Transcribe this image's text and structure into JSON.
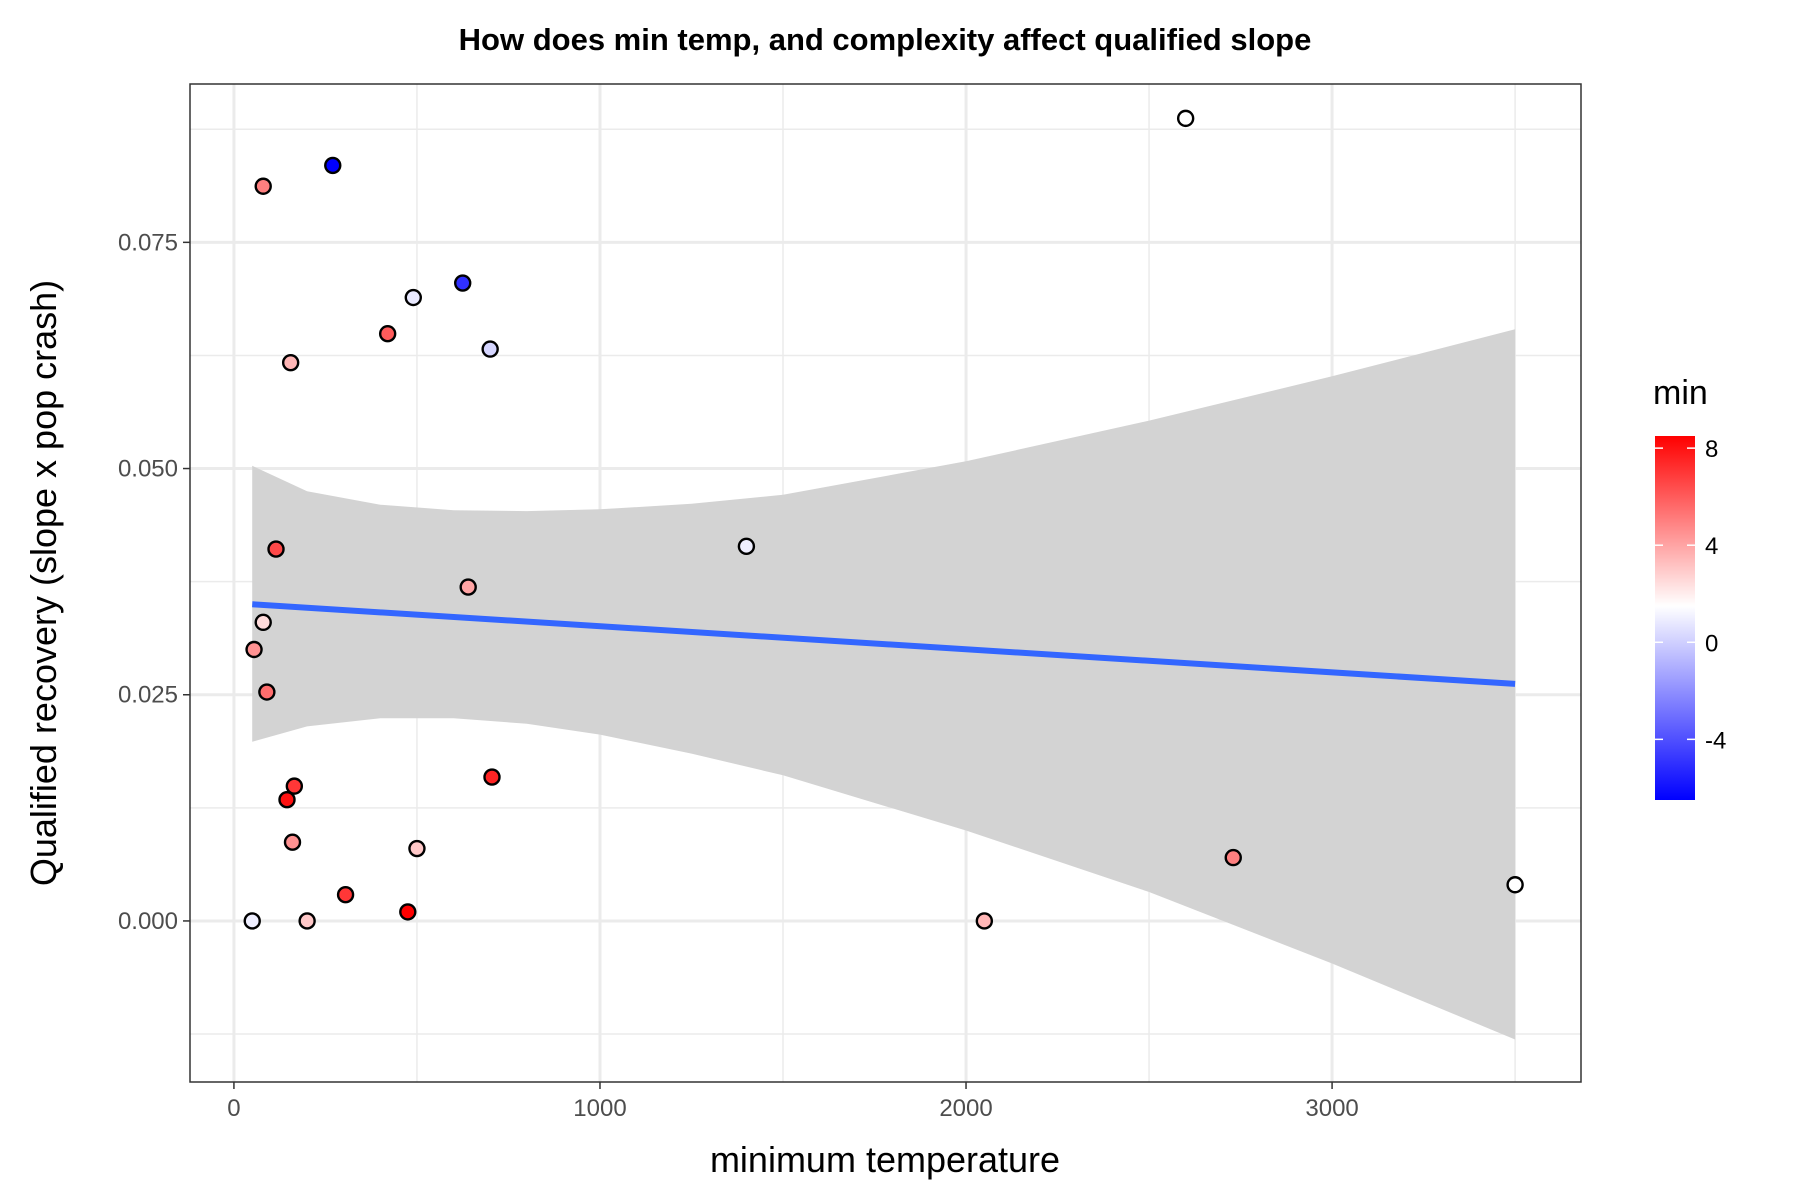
{
  "chart_data": {
    "type": "scatter",
    "title": "How does min temp, and complexity affect qualified slope",
    "xlabel": "minimum temperature",
    "ylabel": "Qualified recovery (slope x pop crash)",
    "xlim": [
      -120,
      3680
    ],
    "ylim": [
      -0.0178,
      0.0925
    ],
    "x_ticks": [
      0,
      1000,
      2000,
      3000
    ],
    "x_tick_labels": [
      "0",
      "1000",
      "2000",
      "3000"
    ],
    "x_minor_ticks": [
      500,
      1500,
      2500,
      3500
    ],
    "y_ticks": [
      0.0,
      0.025,
      0.05,
      0.075
    ],
    "y_tick_labels": [
      "0.000",
      "0.025",
      "0.050",
      "0.075"
    ],
    "y_minor_ticks": [
      -0.0125,
      0.0125,
      0.0375,
      0.0625,
      0.0875
    ],
    "grid": true,
    "color_scale": {
      "title": "min",
      "low": -6.5,
      "mid": 1.5,
      "high": 8.5,
      "low_color": "#0000ff",
      "mid_color": "#ffffff",
      "high_color": "#ff0000",
      "ticks": [
        8,
        4,
        0,
        -4
      ],
      "tick_labels": [
        "8",
        "4",
        "0",
        "-4"
      ]
    },
    "points": [
      {
        "x": 270,
        "y": 0.0835,
        "color": -6.5
      },
      {
        "x": 80,
        "y": 0.0812,
        "color": 5.0
      },
      {
        "x": 2600,
        "y": 0.0887,
        "color": 1.5
      },
      {
        "x": 625,
        "y": 0.0705,
        "color": -5.0
      },
      {
        "x": 490,
        "y": 0.0689,
        "color": 0.8
      },
      {
        "x": 420,
        "y": 0.0649,
        "color": 6.0
      },
      {
        "x": 700,
        "y": 0.0632,
        "color": 0.2
      },
      {
        "x": 155,
        "y": 0.0617,
        "color": 3.5
      },
      {
        "x": 115,
        "y": 0.0411,
        "color": 6.5
      },
      {
        "x": 1400,
        "y": 0.0414,
        "color": 1.0
      },
      {
        "x": 640,
        "y": 0.0369,
        "color": 4.0
      },
      {
        "x": 80,
        "y": 0.033,
        "color": 2.5
      },
      {
        "x": 55,
        "y": 0.03,
        "color": 4.5
      },
      {
        "x": 90,
        "y": 0.0253,
        "color": 5.5
      },
      {
        "x": 165,
        "y": 0.0149,
        "color": 7.0
      },
      {
        "x": 145,
        "y": 0.0134,
        "color": 8.0
      },
      {
        "x": 705,
        "y": 0.0159,
        "color": 7.5
      },
      {
        "x": 160,
        "y": 0.0087,
        "color": 4.5
      },
      {
        "x": 500,
        "y": 0.008,
        "color": 3.0
      },
      {
        "x": 2730,
        "y": 0.007,
        "color": 5.0
      },
      {
        "x": 3500,
        "y": 0.004,
        "color": 1.5
      },
      {
        "x": 305,
        "y": 0.0029,
        "color": 7.0
      },
      {
        "x": 475,
        "y": 0.001,
        "color": 8.5
      },
      {
        "x": 50,
        "y": 0.0,
        "color": 1.0
      },
      {
        "x": 200,
        "y": 0.0,
        "color": 3.0
      },
      {
        "x": 2050,
        "y": 0.0,
        "color": 3.5
      }
    ],
    "smooth": {
      "method": "lm",
      "color": "#3366ff",
      "x": [
        50,
        3500
      ],
      "y": [
        0.035,
        0.0262
      ],
      "ci_fill": "#d3d3d3",
      "ci_x": [
        50,
        200,
        400,
        600,
        800,
        1000,
        1250,
        1500,
        2000,
        2500,
        3000,
        3500
      ],
      "ci_upper": [
        0.0503,
        0.0475,
        0.046,
        0.0454,
        0.0453,
        0.0455,
        0.0461,
        0.0471,
        0.0508,
        0.0553,
        0.0602,
        0.0654
      ],
      "ci_lower": [
        0.0198,
        0.0215,
        0.0224,
        0.0224,
        0.0218,
        0.0206,
        0.0185,
        0.0161,
        0.01,
        0.0032,
        -0.0047,
        -0.0131
      ]
    }
  }
}
